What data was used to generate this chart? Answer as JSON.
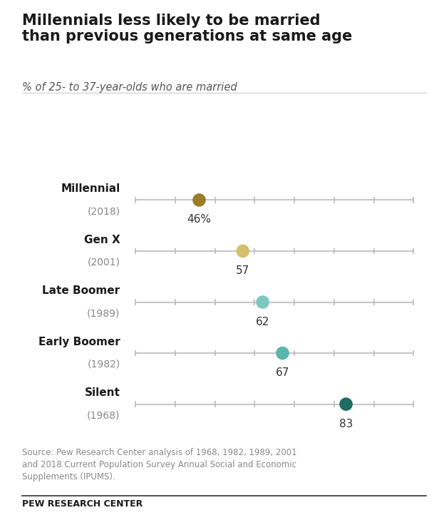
{
  "title": "Millennials less likely to be married\nthan previous generations at same age",
  "subtitle": "% of 25- to 37-year-olds who are married",
  "categories": [
    [
      "Millennial",
      "(2018)"
    ],
    [
      "Gen X",
      "(2001)"
    ],
    [
      "Late Boomer",
      "(1989)"
    ],
    [
      "Early Boomer",
      "(1982)"
    ],
    [
      "Silent",
      "(1968)"
    ]
  ],
  "values": [
    46,
    57,
    62,
    67,
    83
  ],
  "value_labels": [
    "46%",
    "57",
    "62",
    "67",
    "83"
  ],
  "colors": [
    "#9B7D2A",
    "#D4C06A",
    "#7EC8C0",
    "#5BB5AC",
    "#1D6B62"
  ],
  "xmin": 30,
  "xmax": 100,
  "line_color": "#BBBBBB",
  "tick_color": "#BBBBBB",
  "source_text": "Source: Pew Research Center analysis of 1968, 1982, 1989, 2001\nand 2018 Current Population Survey Annual Social and Economic\nSupplements (IPUMS).",
  "footer_text": "PEW RESEARCH CENTER",
  "background_color": "#FFFFFF",
  "dot_size": 180,
  "line_width": 1.2
}
